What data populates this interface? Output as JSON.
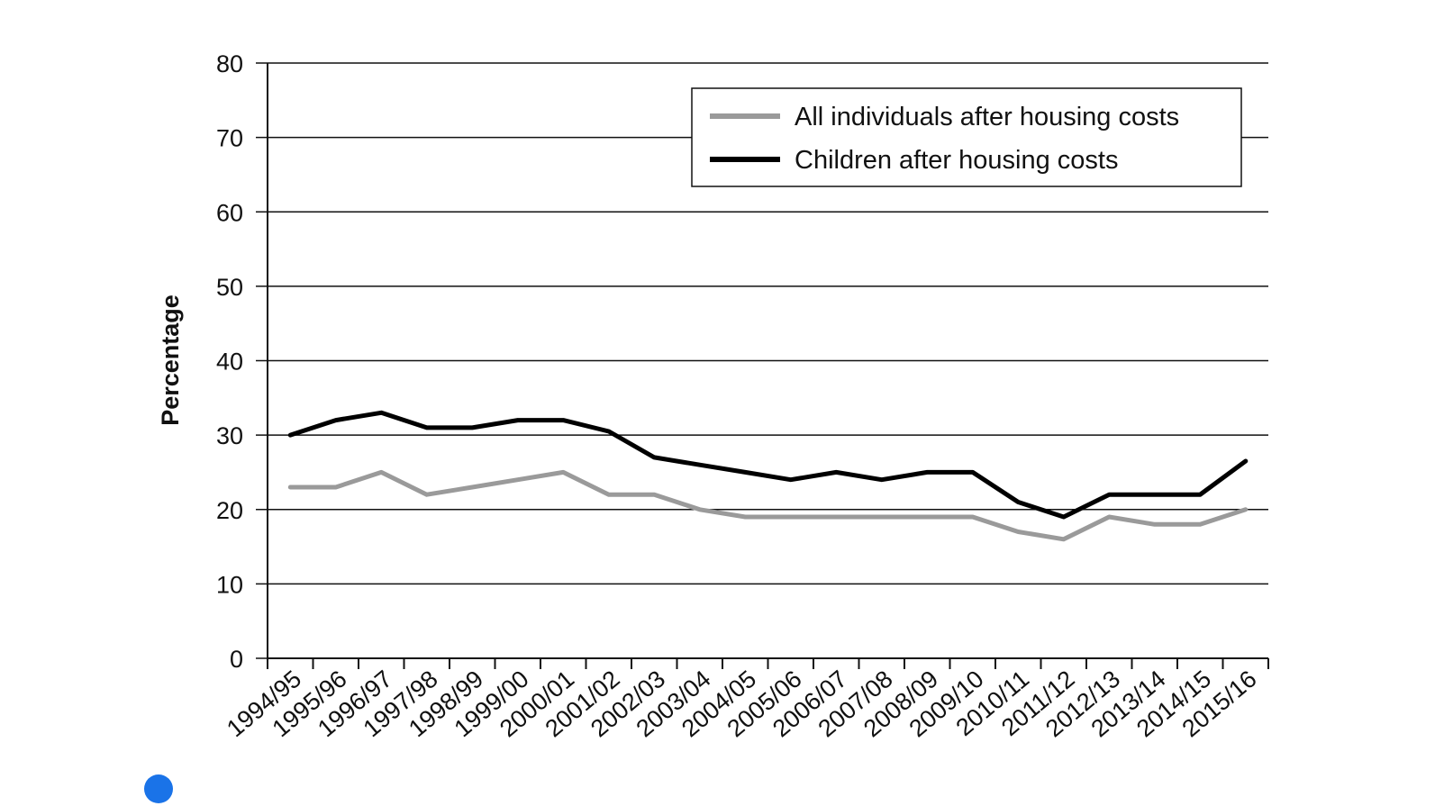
{
  "chart_data": {
    "type": "line",
    "title": "",
    "xlabel": "",
    "ylabel": "Percentage",
    "ylim": [
      0,
      80
    ],
    "yticks": [
      0,
      10,
      20,
      30,
      40,
      50,
      60,
      70,
      80
    ],
    "grid": true,
    "legend_position": "top-right",
    "categories": [
      "1994/95",
      "1995/96",
      "1996/97",
      "1997/98",
      "1998/99",
      "1999/00",
      "2000/01",
      "2001/02",
      "2002/03",
      "2003/04",
      "2004/05",
      "2005/06",
      "2006/07",
      "2007/08",
      "2008/09",
      "2009/10",
      "2010/11",
      "2011/12",
      "2012/13",
      "2013/14",
      "2014/15",
      "2015/16"
    ],
    "series": [
      {
        "name": "All individuals after housing costs",
        "color": "#9a9a9a",
        "values": [
          23,
          23,
          25,
          22,
          23,
          24,
          25,
          22,
          22,
          20,
          19,
          19,
          19,
          19,
          19,
          19,
          17,
          16,
          19,
          18,
          18,
          20
        ]
      },
      {
        "name": "Children after housing costs",
        "color": "#000000",
        "values": [
          30,
          32,
          33,
          31,
          31,
          32,
          32,
          30.5,
          27,
          26,
          25,
          24,
          25,
          24,
          25,
          25,
          21,
          19,
          22,
          22,
          22,
          26.5
        ]
      }
    ]
  },
  "colors": {
    "axis": "#111111",
    "grid": "#111111",
    "background": "#ffffff",
    "overlay_dot": "#1a73e8"
  }
}
